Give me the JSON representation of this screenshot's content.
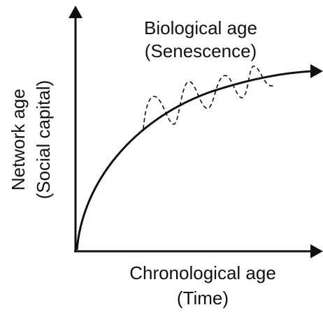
{
  "y_axis": {
    "label": "Network age",
    "sublabel": "(Social capital)"
  },
  "x_axis": {
    "label": "Chronological age",
    "sublabel": "(Time)"
  },
  "annotation": {
    "label": "Biological age",
    "sublabel": "(Senescence)"
  }
}
